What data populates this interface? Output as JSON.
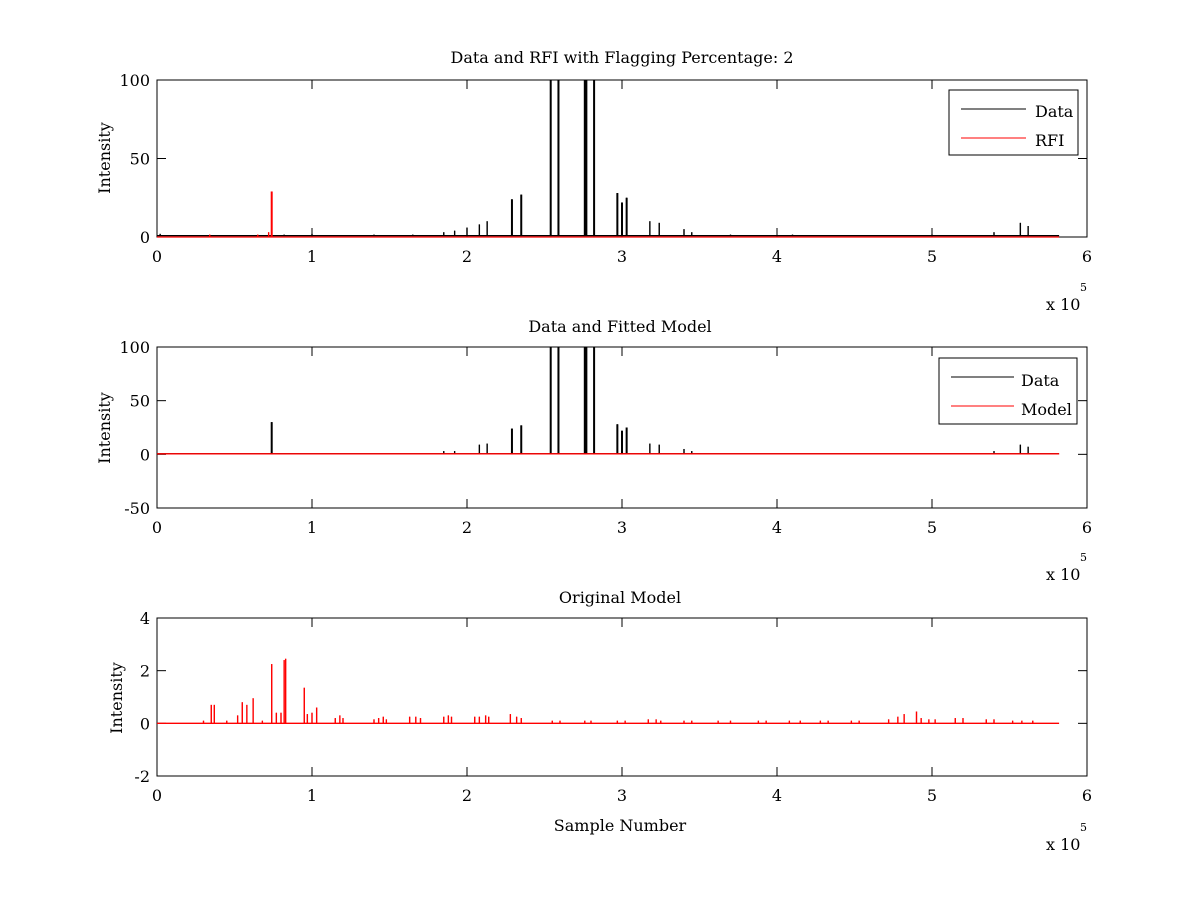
{
  "figure": {
    "background": "#ffffff",
    "exponent_base": "x 10",
    "exponent_power": "5"
  },
  "chart_data": [
    {
      "type": "line",
      "title": "Data and RFI with Flagging Percentage: 2",
      "xlabel": "",
      "ylabel": "Intensity",
      "xlim": [
        0,
        6
      ],
      "ylim": [
        0,
        100
      ],
      "xticks": [
        "0",
        "1",
        "2",
        "3",
        "4",
        "5",
        "6"
      ],
      "yticks": [
        "0",
        "50",
        "100"
      ],
      "ytick_values": [
        0,
        50,
        100
      ],
      "x_multiplier": "x 10^5",
      "grid": false,
      "legend_position": "top-right",
      "series": [
        {
          "name": "Data",
          "color": "#000000",
          "baseline": 0.8,
          "spikes": [
            [
              0.02,
              2
            ],
            [
              0.82,
              1.5
            ],
            [
              1.0,
              2
            ],
            [
              1.4,
              1.5
            ],
            [
              1.65,
              1.5
            ],
            [
              1.85,
              3
            ],
            [
              1.92,
              4
            ],
            [
              2.0,
              6
            ],
            [
              2.08,
              8
            ],
            [
              2.13,
              10
            ],
            [
              2.29,
              24
            ],
            [
              2.35,
              27
            ],
            [
              2.54,
              100
            ],
            [
              2.59,
              100
            ],
            [
              2.76,
              100
            ],
            [
              2.77,
              100
            ],
            [
              2.82,
              100
            ],
            [
              2.97,
              28
            ],
            [
              3.0,
              22
            ],
            [
              3.03,
              25
            ],
            [
              3.18,
              10
            ],
            [
              3.24,
              9
            ],
            [
              3.4,
              5
            ],
            [
              3.45,
              3
            ],
            [
              3.7,
              1.5
            ],
            [
              4.1,
              1.5
            ],
            [
              4.5,
              1.2
            ],
            [
              5.0,
              1.5
            ],
            [
              5.4,
              3
            ],
            [
              5.57,
              9
            ],
            [
              5.62,
              7
            ]
          ]
        },
        {
          "name": "RFI",
          "color": "#ff0000",
          "baseline": 0,
          "spikes": [
            [
              0.34,
              1.5
            ],
            [
              0.65,
              1.5
            ],
            [
              0.72,
              3
            ],
            [
              0.74,
              29
            ]
          ]
        }
      ]
    },
    {
      "type": "line",
      "title": "Data and Fitted Model",
      "xlabel": "",
      "ylabel": "Intensity",
      "xlim": [
        0,
        6
      ],
      "ylim": [
        -50,
        100
      ],
      "xticks": [
        "0",
        "1",
        "2",
        "3",
        "4",
        "5",
        "6"
      ],
      "yticks": [
        "-50",
        "0",
        "50",
        "100"
      ],
      "ytick_values": [
        -50,
        0,
        50,
        100
      ],
      "x_multiplier": "x 10^5",
      "grid": false,
      "legend_position": "top-right",
      "series": [
        {
          "name": "Data",
          "color": "#000000",
          "baseline": 0.5,
          "spikes": [
            [
              0.74,
              30
            ],
            [
              1.85,
              3
            ],
            [
              1.92,
              3
            ],
            [
              2.08,
              9
            ],
            [
              2.13,
              10
            ],
            [
              2.29,
              24
            ],
            [
              2.35,
              27
            ],
            [
              2.54,
              100
            ],
            [
              2.59,
              100
            ],
            [
              2.76,
              100
            ],
            [
              2.77,
              100
            ],
            [
              2.82,
              100
            ],
            [
              2.97,
              28
            ],
            [
              3.0,
              22
            ],
            [
              3.03,
              25
            ],
            [
              3.18,
              10
            ],
            [
              3.24,
              9
            ],
            [
              3.4,
              5
            ],
            [
              3.45,
              3
            ],
            [
              5.4,
              3
            ],
            [
              5.57,
              9
            ],
            [
              5.62,
              7
            ]
          ]
        },
        {
          "name": "Model",
          "color": "#ff0000",
          "baseline": 0.5,
          "spikes": []
        }
      ]
    },
    {
      "type": "line",
      "title": "Original Model",
      "xlabel": "Sample Number",
      "ylabel": "Intensity",
      "xlim": [
        0,
        6
      ],
      "ylim": [
        -2,
        4
      ],
      "xticks": [
        "0",
        "1",
        "2",
        "3",
        "4",
        "5",
        "6"
      ],
      "yticks": [
        "-2",
        "0",
        "2",
        "4"
      ],
      "ytick_values": [
        -2,
        0,
        2,
        4
      ],
      "x_multiplier": "x 10^5",
      "grid": false,
      "legend_position": "none",
      "series": [
        {
          "name": "",
          "color": "#ff0000",
          "baseline": 0,
          "spikes": [
            [
              0.3,
              0.1
            ],
            [
              0.35,
              0.7
            ],
            [
              0.37,
              0.7
            ],
            [
              0.45,
              0.1
            ],
            [
              0.52,
              0.3
            ],
            [
              0.55,
              0.8
            ],
            [
              0.58,
              0.7
            ],
            [
              0.62,
              0.95
            ],
            [
              0.68,
              0.1
            ],
            [
              0.74,
              2.25
            ],
            [
              0.77,
              0.4
            ],
            [
              0.8,
              0.4
            ],
            [
              0.82,
              2.4
            ],
            [
              0.83,
              2.45
            ],
            [
              0.95,
              1.35
            ],
            [
              0.97,
              0.35
            ],
            [
              1.0,
              0.4
            ],
            [
              1.03,
              0.6
            ],
            [
              1.15,
              0.2
            ],
            [
              1.18,
              0.3
            ],
            [
              1.2,
              0.2
            ],
            [
              1.4,
              0.15
            ],
            [
              1.43,
              0.2
            ],
            [
              1.46,
              0.25
            ],
            [
              1.48,
              0.15
            ],
            [
              1.63,
              0.25
            ],
            [
              1.67,
              0.25
            ],
            [
              1.7,
              0.2
            ],
            [
              1.85,
              0.25
            ],
            [
              1.88,
              0.3
            ],
            [
              1.9,
              0.25
            ],
            [
              2.05,
              0.25
            ],
            [
              2.08,
              0.25
            ],
            [
              2.12,
              0.3
            ],
            [
              2.14,
              0.25
            ],
            [
              2.28,
              0.35
            ],
            [
              2.32,
              0.25
            ],
            [
              2.35,
              0.2
            ],
            [
              2.55,
              0.1
            ],
            [
              2.6,
              0.1
            ],
            [
              2.76,
              0.1
            ],
            [
              2.8,
              0.1
            ],
            [
              2.97,
              0.1
            ],
            [
              3.02,
              0.1
            ],
            [
              3.17,
              0.15
            ],
            [
              3.22,
              0.15
            ],
            [
              3.25,
              0.1
            ],
            [
              3.4,
              0.1
            ],
            [
              3.45,
              0.1
            ],
            [
              3.62,
              0.1
            ],
            [
              3.7,
              0.1
            ],
            [
              3.88,
              0.1
            ],
            [
              3.93,
              0.1
            ],
            [
              4.08,
              0.1
            ],
            [
              4.15,
              0.1
            ],
            [
              4.28,
              0.1
            ],
            [
              4.33,
              0.1
            ],
            [
              4.48,
              0.1
            ],
            [
              4.53,
              0.1
            ],
            [
              4.72,
              0.15
            ],
            [
              4.78,
              0.25
            ],
            [
              4.82,
              0.35
            ],
            [
              4.9,
              0.45
            ],
            [
              4.93,
              0.2
            ],
            [
              4.98,
              0.15
            ],
            [
              5.02,
              0.15
            ],
            [
              5.15,
              0.2
            ],
            [
              5.2,
              0.2
            ],
            [
              5.35,
              0.15
            ],
            [
              5.4,
              0.15
            ],
            [
              5.52,
              0.1
            ],
            [
              5.58,
              0.1
            ],
            [
              5.65,
              0.1
            ]
          ]
        }
      ]
    }
  ]
}
